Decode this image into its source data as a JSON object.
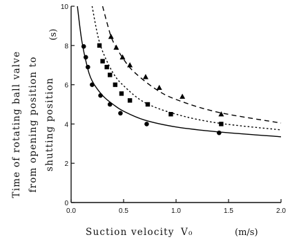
{
  "chart_data": {
    "type": "line",
    "ylabel_lines": [
      "Time of rotating ball valve",
      "from opening position to",
      "shutting position"
    ],
    "y_unit": "(s)",
    "xlabel": "Suction velocity",
    "xlabel_symbol": "V₀",
    "x_unit": "(m/s)",
    "xlim": [
      0,
      2.0
    ],
    "ylim": [
      0,
      10
    ],
    "xticks": [
      0.0,
      0.5,
      1.0,
      1.5,
      2.0
    ],
    "xtick_labels": [
      "0.0",
      "0.5",
      "1.0",
      "1.5",
      "2.0"
    ],
    "yticks": [
      0,
      2,
      4,
      6,
      8,
      10
    ],
    "ytick_labels": [
      "0",
      "2",
      "4",
      "6",
      "8",
      "10"
    ],
    "grid": false,
    "legend": "none",
    "series": [
      {
        "line_style": "solid",
        "marker": "circle",
        "color": "#000000",
        "curve": [
          [
            0.06,
            10.0
          ],
          [
            0.1,
            8.3
          ],
          [
            0.15,
            7.0
          ],
          [
            0.2,
            6.2
          ],
          [
            0.3,
            5.45
          ],
          [
            0.4,
            5.0
          ],
          [
            0.5,
            4.65
          ],
          [
            0.7,
            4.2
          ],
          [
            1.0,
            3.85
          ],
          [
            1.4,
            3.6
          ],
          [
            2.0,
            3.35
          ]
        ],
        "points": [
          [
            0.12,
            7.95
          ],
          [
            0.14,
            7.4
          ],
          [
            0.16,
            6.9
          ],
          [
            0.2,
            6.0
          ],
          [
            0.28,
            5.45
          ],
          [
            0.37,
            5.0
          ],
          [
            0.47,
            4.55
          ],
          [
            0.72,
            4.0
          ],
          [
            1.41,
            3.55
          ]
        ]
      },
      {
        "line_style": "dotted",
        "marker": "square",
        "color": "#000000",
        "curve": [
          [
            0.2,
            10.0
          ],
          [
            0.25,
            8.6
          ],
          [
            0.3,
            7.7
          ],
          [
            0.4,
            6.6
          ],
          [
            0.5,
            5.95
          ],
          [
            0.7,
            5.1
          ],
          [
            1.0,
            4.5
          ],
          [
            1.4,
            4.05
          ],
          [
            2.0,
            3.7
          ]
        ],
        "points": [
          [
            0.27,
            8.0
          ],
          [
            0.3,
            7.2
          ],
          [
            0.34,
            6.9
          ],
          [
            0.37,
            6.5
          ],
          [
            0.42,
            6.0
          ],
          [
            0.48,
            5.55
          ],
          [
            0.56,
            5.2
          ],
          [
            0.73,
            5.0
          ],
          [
            0.95,
            4.5
          ],
          [
            1.43,
            4.0
          ]
        ]
      },
      {
        "line_style": "dashed",
        "marker": "triangle",
        "color": "#000000",
        "curve": [
          [
            0.3,
            10.0
          ],
          [
            0.35,
            9.0
          ],
          [
            0.4,
            8.2
          ],
          [
            0.5,
            7.3
          ],
          [
            0.6,
            6.65
          ],
          [
            0.8,
            5.8
          ],
          [
            1.0,
            5.25
          ],
          [
            1.4,
            4.6
          ],
          [
            2.0,
            4.05
          ]
        ],
        "points": [
          [
            0.38,
            8.45
          ],
          [
            0.43,
            7.9
          ],
          [
            0.49,
            7.4
          ],
          [
            0.56,
            7.0
          ],
          [
            0.71,
            6.4
          ],
          [
            0.84,
            5.85
          ],
          [
            1.06,
            5.4
          ],
          [
            1.43,
            4.5
          ]
        ]
      }
    ]
  }
}
